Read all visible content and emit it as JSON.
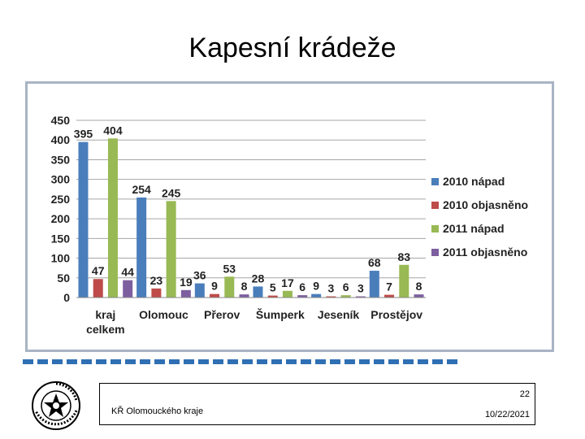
{
  "slide": {
    "title": "Kapesní krádeže",
    "footer_left": "KŘ Olomouckého kraje",
    "page_number": "22",
    "date": "10/22/2021",
    "logo_text": "POLICIE ČESKÉ REPUBLIKY"
  },
  "chart_data": {
    "type": "bar",
    "categories": [
      "kraj celkem",
      "Olomouc",
      "Přerov",
      "Šumperk",
      "Jeseník",
      "Prostějov"
    ],
    "category_lines": [
      [
        "kraj",
        "celkem"
      ],
      [
        "Olomouc"
      ],
      [
        "Přerov"
      ],
      [
        "Šumperk"
      ],
      [
        "Jeseník"
      ],
      [
        "Prostějov"
      ]
    ],
    "series": [
      {
        "name": "2010 nápad",
        "color": "#4a7ebb",
        "values": [
          395,
          254,
          36,
          28,
          9,
          68
        ]
      },
      {
        "name": "2010 objasněno",
        "color": "#be4b48",
        "values": [
          47,
          23,
          9,
          5,
          3,
          7
        ]
      },
      {
        "name": "2011 nápad",
        "color": "#98b954",
        "values": [
          404,
          245,
          53,
          17,
          6,
          83
        ]
      },
      {
        "name": "2011 objasněno",
        "color": "#7d5fa0",
        "values": [
          44,
          19,
          8,
          6,
          3,
          8
        ]
      }
    ],
    "ylim": [
      0,
      450
    ],
    "yticks": [
      0,
      50,
      100,
      150,
      200,
      250,
      300,
      350,
      400,
      450
    ],
    "grid": true,
    "legend": "right"
  }
}
